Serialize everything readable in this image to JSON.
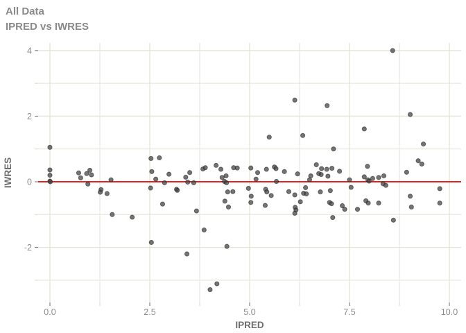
{
  "header": {
    "title": "All Data",
    "subtitle": "IPRED vs IWRES"
  },
  "chart_data": {
    "type": "scatter",
    "title": "All Data",
    "subtitle": "IPRED vs IWRES",
    "xlabel": "IPRED",
    "ylabel": "IWRES",
    "xlim": [
      -0.295,
      10.295
    ],
    "ylim": [
      -3.68,
      4.23
    ],
    "grid": true,
    "legend": "none",
    "x_major_ticks": [
      0,
      2.5,
      5,
      7.5,
      10
    ],
    "x_major_labels": [
      "0.0",
      "2.5",
      "5.0",
      "7.5",
      "10.0"
    ],
    "x_minor_ticks": [
      1.25,
      3.75,
      6.25,
      8.75
    ],
    "y_major_ticks": [
      -2,
      0,
      2,
      4
    ],
    "y_major_labels": [
      "-2",
      "0",
      "2",
      "4"
    ],
    "y_minor_ticks": [
      -3,
      -1,
      1,
      3
    ],
    "reference_line": {
      "y": 0,
      "color": "#e60000"
    },
    "colors": {
      "point": "#464646",
      "point_edge": "#1f1f1f",
      "grid": "#e4e4d6",
      "major_tick": "#707070",
      "minor_tick": "#d9d9c9",
      "axis_text": "#8b8b8b",
      "axis_title": "#6e6e6e",
      "title_text": "#8a8a8a",
      "panel_bg": "#ffffff"
    },
    "points": [
      [
        0,
        1.05
      ],
      [
        0,
        0.36
      ],
      [
        0,
        0.2
      ],
      [
        0,
        0.02
      ],
      [
        0.01,
        0
      ],
      [
        0.72,
        0.27
      ],
      [
        0.77,
        0.12
      ],
      [
        0.92,
        0.25
      ],
      [
        1,
        0.35
      ],
      [
        1.04,
        0.21
      ],
      [
        0.95,
        -0.07
      ],
      [
        1.28,
        -0.24
      ],
      [
        1.26,
        -0.32
      ],
      [
        1.43,
        -0.36
      ],
      [
        1.53,
        0.06
      ],
      [
        1.56,
        -1
      ],
      [
        2.06,
        -1.08
      ],
      [
        2.53,
        0.71
      ],
      [
        2.74,
        0.73
      ],
      [
        2.55,
        0.31
      ],
      [
        2.65,
        0.08
      ],
      [
        2.98,
        0.23
      ],
      [
        2.87,
        -0.03
      ],
      [
        2.52,
        -0.19
      ],
      [
        2.82,
        -0.68
      ],
      [
        2.54,
        -1.85
      ],
      [
        3.17,
        -0.23
      ],
      [
        3.19,
        -0.26
      ],
      [
        3.4,
        0.14
      ],
      [
        3.5,
        0.28
      ],
      [
        3.45,
        -0.01
      ],
      [
        3.6,
        -0.03
      ],
      [
        3.67,
        -0.89
      ],
      [
        3.43,
        -2.2
      ],
      [
        3.83,
        0.39
      ],
      [
        3.89,
        0.43
      ],
      [
        3.86,
        -1.47
      ],
      [
        4.16,
        0.5
      ],
      [
        4.28,
        0.38
      ],
      [
        4.31,
        0.13
      ],
      [
        4.41,
        0.18
      ],
      [
        4.37,
        0.01
      ],
      [
        4.42,
        -0.03
      ],
      [
        4.45,
        -0.31
      ],
      [
        4.58,
        -0.3
      ],
      [
        4.38,
        -0.59
      ],
      [
        4.47,
        -0.77
      ],
      [
        4.6,
        0.43
      ],
      [
        4.69,
        0.42
      ],
      [
        4.43,
        -1.97
      ],
      [
        4.18,
        -3.11
      ],
      [
        4.01,
        -3.29
      ],
      [
        5.03,
        0.42
      ],
      [
        5.2,
        0.28
      ],
      [
        5.16,
        0.08
      ],
      [
        5.42,
        0.38
      ],
      [
        5.62,
        0.45
      ],
      [
        5.66,
        0.4
      ],
      [
        5.87,
        0.31
      ],
      [
        5.67,
        0.01
      ],
      [
        4.97,
        -0.2
      ],
      [
        5.04,
        -0.44
      ],
      [
        5.03,
        -0.63
      ],
      [
        5.4,
        -0.23
      ],
      [
        5.43,
        -0.31
      ],
      [
        5.54,
        -0.42
      ],
      [
        5.39,
        -0.72
      ],
      [
        5.49,
        1.36
      ],
      [
        6.13,
        2.49
      ],
      [
        5.98,
        -0.3
      ],
      [
        6.13,
        -0.4
      ],
      [
        6.2,
        0.24
      ],
      [
        6.27,
        -0.61
      ],
      [
        6.14,
        -0.78
      ],
      [
        6.16,
        -0.86
      ],
      [
        6.13,
        -0.96
      ],
      [
        6.35,
        -0.35
      ],
      [
        6.42,
        -0.37
      ],
      [
        6.4,
        -0.18
      ],
      [
        6.5,
        0.06
      ],
      [
        6.53,
        0.18
      ],
      [
        6.33,
        1.41
      ],
      [
        6.67,
        0.52
      ],
      [
        6.73,
        0.25
      ],
      [
        6.79,
        0.22
      ],
      [
        6.8,
        0.4
      ],
      [
        6.93,
        0.38
      ],
      [
        6.96,
        0.17
      ],
      [
        7.06,
        0.41
      ],
      [
        6.77,
        -0.31
      ],
      [
        7.02,
        -0.27
      ],
      [
        7,
        -0.63
      ],
      [
        7.05,
        -0.67
      ],
      [
        7.25,
        0.32
      ],
      [
        7.32,
        -0.73
      ],
      [
        7.38,
        -0.84
      ],
      [
        7.08,
        -1.09
      ],
      [
        6.94,
        2.32
      ],
      [
        7.1,
        1
      ],
      [
        7.5,
        0.06
      ],
      [
        7.54,
        -0.17
      ],
      [
        7.7,
        -0.84
      ],
      [
        7.95,
        0.47
      ],
      [
        7.87,
        0.15
      ],
      [
        7.96,
        0.06
      ],
      [
        7.99,
        0.02
      ],
      [
        8.08,
        0.1
      ],
      [
        8.23,
        0.13
      ],
      [
        8.36,
        0.18
      ],
      [
        8.34,
        -0.06
      ],
      [
        8.41,
        -0.11
      ],
      [
        7.91,
        -0.58
      ],
      [
        7.97,
        -0.65
      ],
      [
        8.23,
        -0.65
      ],
      [
        7.87,
        1.61
      ],
      [
        8.58,
        4
      ],
      [
        8.6,
        -1.17
      ],
      [
        8.93,
        0.29
      ],
      [
        9.22,
        0.64
      ],
      [
        9.31,
        0.54
      ],
      [
        9.02,
        -0.44
      ],
      [
        9.05,
        -0.77
      ],
      [
        9.76,
        -0.21
      ],
      [
        9.76,
        -0.65
      ],
      [
        9.02,
        2.05
      ],
      [
        9.35,
        1.15
      ]
    ]
  }
}
